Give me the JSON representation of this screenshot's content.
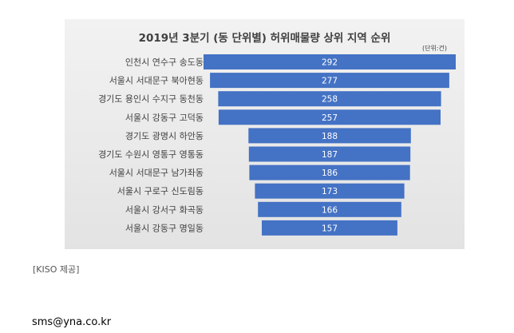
{
  "chart_data": {
    "type": "bar",
    "orientation": "horizontal",
    "title": "2019년 3분기 (동 단위별) 허위매물량 상위 지역 순위",
    "unit": "(단위:건)",
    "categories": [
      "인천시 연수구 송도동",
      "서울시 서대문구 북아현동",
      "경기도 용인시 수지구 동천동",
      "서울시 강동구 고덕동",
      "경기도 광명시 하안동",
      "경기도 수원시 영통구 영통동",
      "서울시 서대문구 남가좌동",
      "서울시 구로구 신도림동",
      "서울시 강서구 화곡동",
      "서울시 강동구 명일동"
    ],
    "values": [
      292,
      277,
      258,
      257,
      188,
      187,
      186,
      173,
      166,
      157
    ],
    "value_labels": [
      "292",
      "277",
      "258",
      "257",
      "188",
      "187",
      "186",
      "173",
      "166",
      "157"
    ],
    "bar_alignment": "centered",
    "bar_color": "#4472c4",
    "grid": false,
    "legend": "none"
  },
  "caption": "[KISO 제공]",
  "email": "sms@yna.co.kr"
}
